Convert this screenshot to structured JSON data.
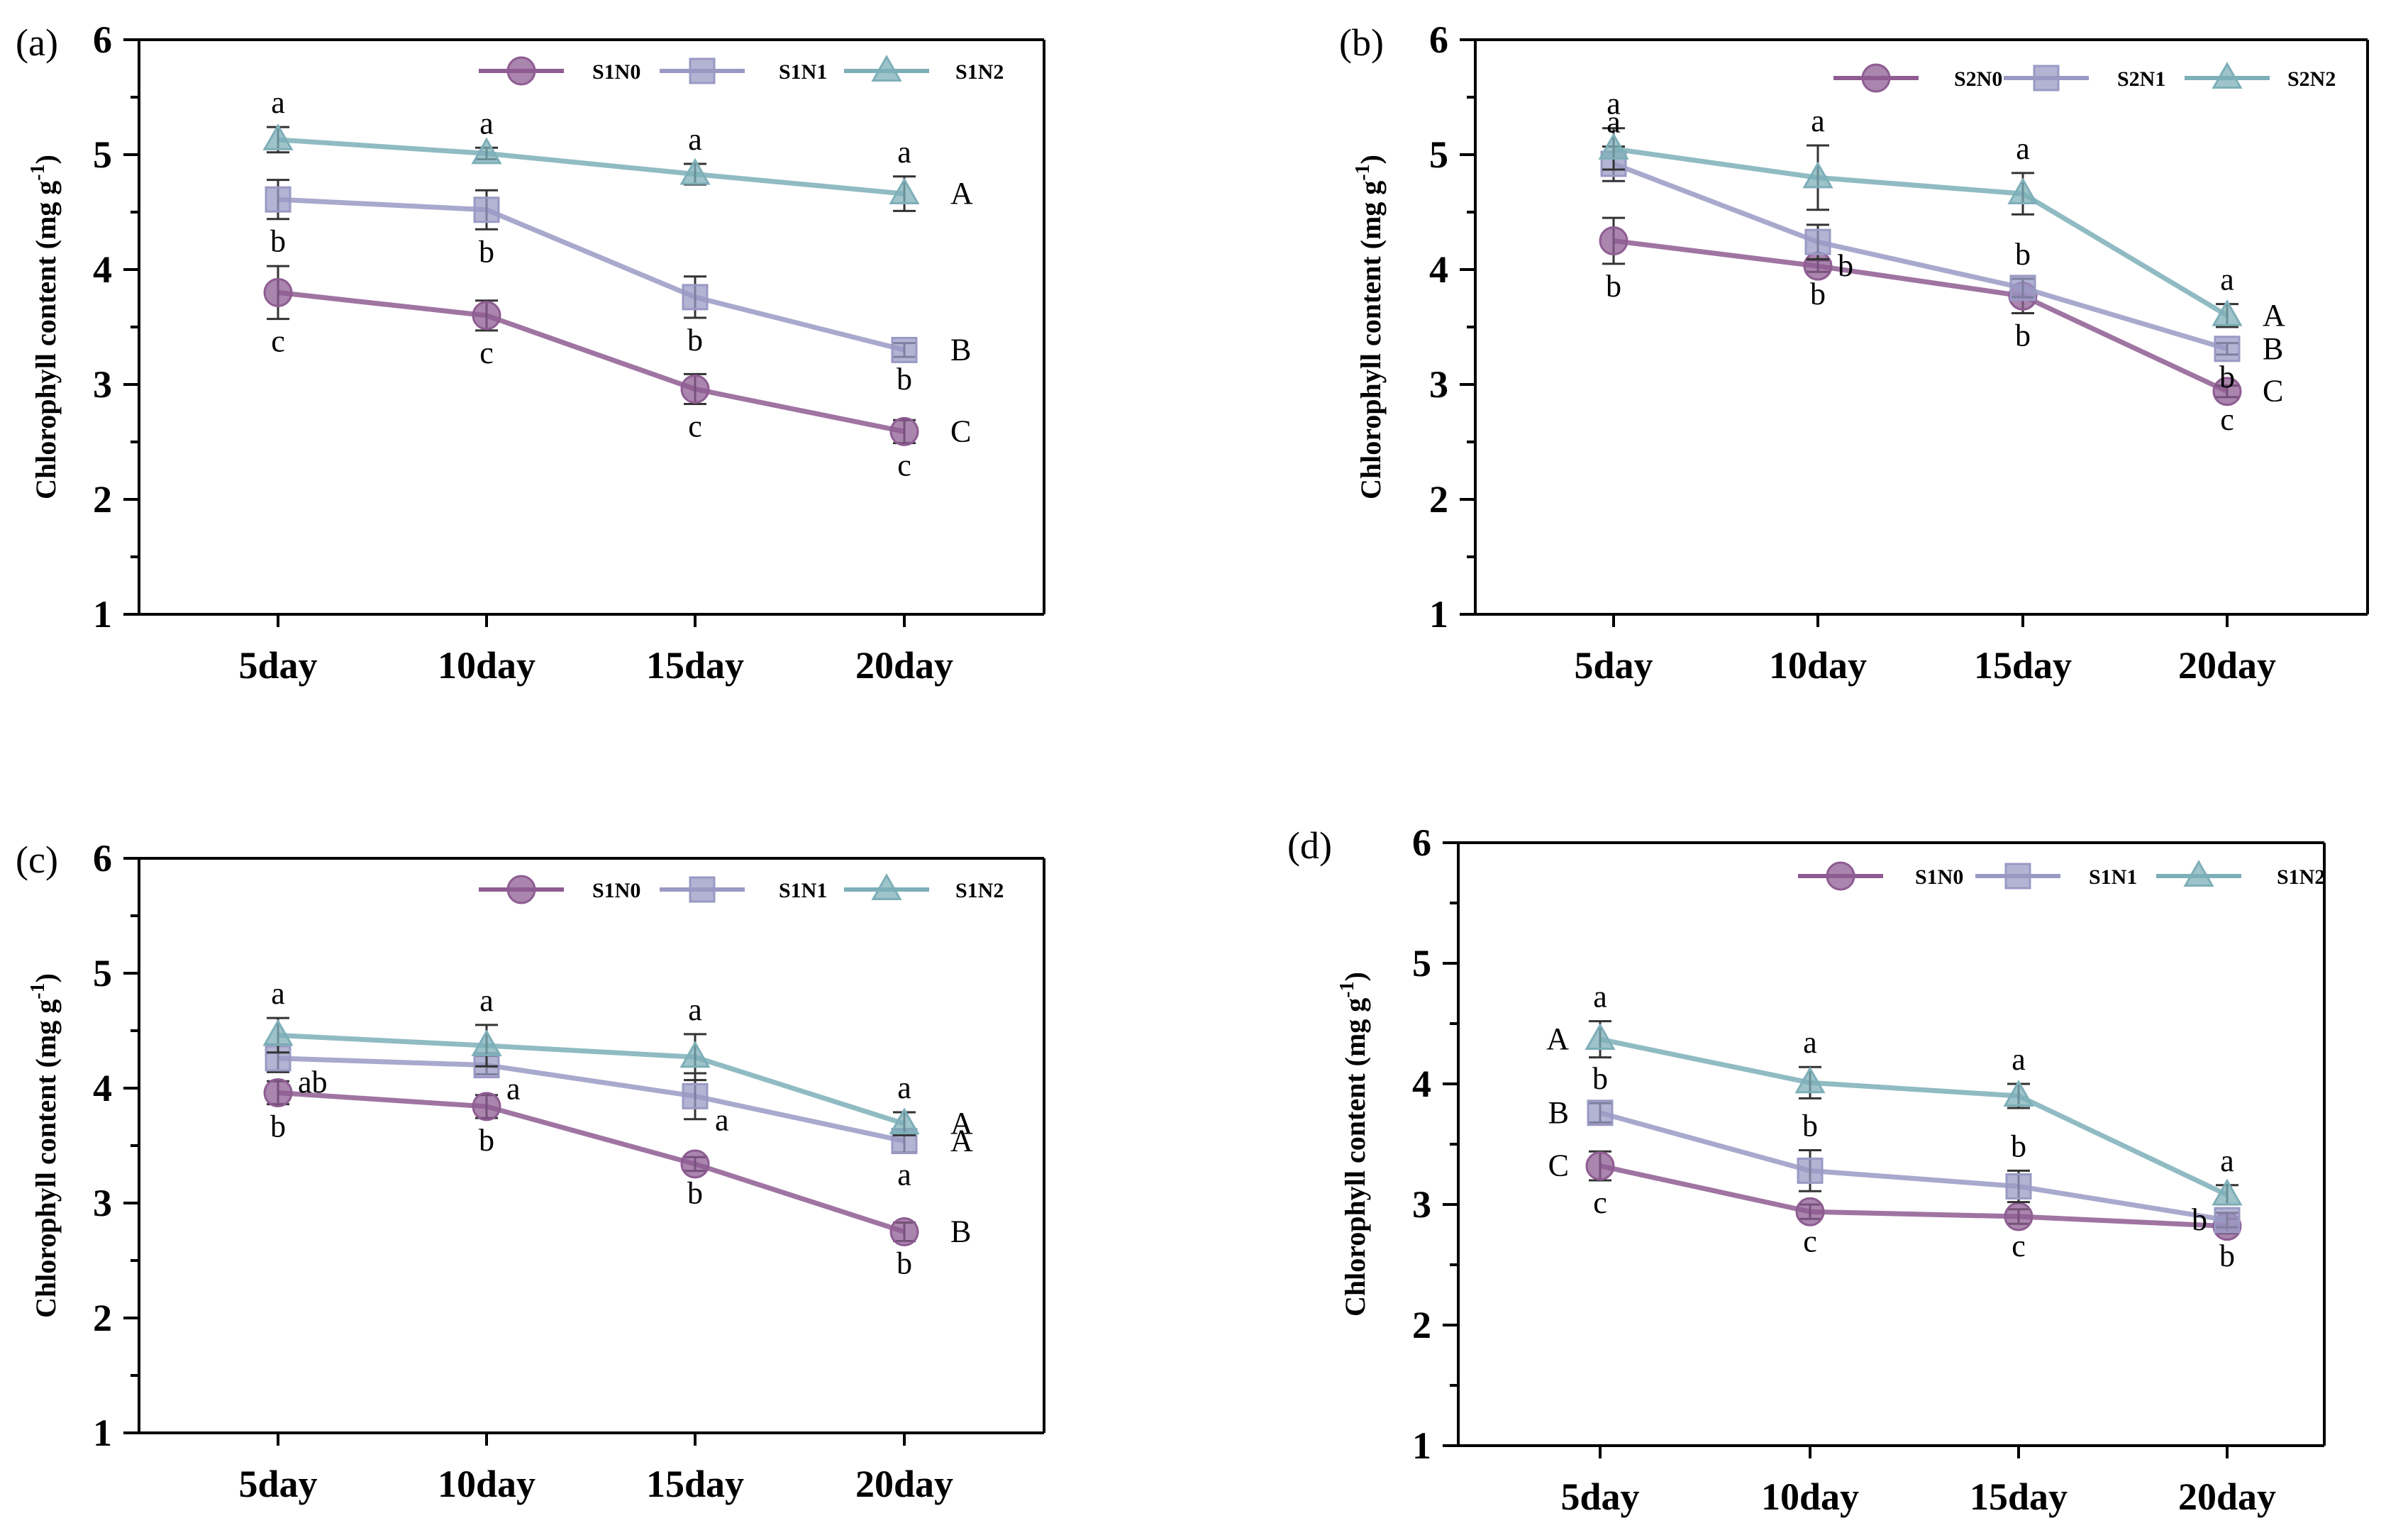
{
  "colors": {
    "N0": "#8E5C92",
    "N1": "#9A99C4",
    "N2": "#7DAFB8"
  },
  "chart_data": [
    {
      "panel": "(a)",
      "type": "line",
      "ylabel": "Chlorophyll content (mg g",
      "ylabel_sup": "-1",
      "ylabel_close": ")",
      "ylim": [
        1,
        6
      ],
      "yticks": [
        "1",
        "2",
        "3",
        "4",
        "5",
        "6"
      ],
      "categories": [
        "5day",
        "10day",
        "15day",
        "20day"
      ],
      "legend_position": "top",
      "series": [
        {
          "name": "S1N0",
          "marker": "circle",
          "values": [
            3.8,
            3.6,
            2.96,
            2.59
          ],
          "errors": [
            0.23,
            0.13,
            0.13,
            0.1
          ],
          "sig": [
            "c",
            "c",
            "c",
            "c"
          ],
          "sig_pos": [
            "below",
            "below",
            "below",
            "below"
          ],
          "group": "C"
        },
        {
          "name": "S1N1",
          "marker": "square",
          "values": [
            4.61,
            4.52,
            3.76,
            3.3
          ],
          "errors": [
            0.17,
            0.17,
            0.18,
            0.06
          ],
          "sig": [
            "b",
            "b",
            "b",
            "b"
          ],
          "sig_pos": [
            "below",
            "below",
            "below",
            "below"
          ],
          "group": "B"
        },
        {
          "name": "S1N2",
          "marker": "triangle",
          "values": [
            5.13,
            5.01,
            4.83,
            4.66
          ],
          "errors": [
            0.11,
            0.05,
            0.09,
            0.15
          ],
          "sig": [
            "a",
            "a",
            "a",
            "a"
          ],
          "sig_pos": [
            "above",
            "above",
            "above",
            "above"
          ],
          "group": "A"
        }
      ]
    },
    {
      "panel": "(b)",
      "type": "line",
      "ylabel": "Chlorophyll content (mg g",
      "ylabel_sup": "-1",
      "ylabel_close": ")",
      "ylim": [
        1,
        6
      ],
      "yticks": [
        "1",
        "2",
        "3",
        "4",
        "5",
        "6"
      ],
      "categories": [
        "5day",
        "10day",
        "15day",
        "20day"
      ],
      "legend_position": "top",
      "series": [
        {
          "name": "S2N0",
          "marker": "circle",
          "values": [
            4.25,
            4.03,
            3.77,
            2.94
          ],
          "errors": [
            0.2,
            0.05,
            0.15,
            0.05
          ],
          "sig": [
            "b",
            "b",
            "b",
            "c"
          ],
          "sig_pos": [
            "below",
            "below",
            "below",
            "below"
          ],
          "group": "C"
        },
        {
          "name": "S2N1",
          "marker": "square",
          "values": [
            4.92,
            4.24,
            3.84,
            3.31
          ],
          "errors": [
            0.15,
            0.15,
            0.08,
            0.05
          ],
          "sig": [
            "a",
            "b",
            "b",
            "b"
          ],
          "sig_pos": [
            "above",
            "right",
            "above",
            "below"
          ],
          "group": "B"
        },
        {
          "name": "S2N2",
          "marker": "triangle",
          "values": [
            5.05,
            4.8,
            4.66,
            3.6
          ],
          "errors": [
            0.18,
            0.28,
            0.18,
            0.1
          ],
          "sig": [
            "a",
            "a",
            "a",
            "a"
          ],
          "sig_pos": [
            "above",
            "above",
            "above",
            "above"
          ],
          "group": "A"
        }
      ]
    },
    {
      "panel": "(c)",
      "type": "line",
      "ylabel": "Chlorophyll content (mg g",
      "ylabel_sup": "-1",
      "ylabel_close": ")",
      "ylim": [
        1,
        6
      ],
      "yticks": [
        "1",
        "2",
        "3",
        "4",
        "5",
        "6"
      ],
      "categories": [
        "5day",
        "10day",
        "15day",
        "20day"
      ],
      "legend_position": "top",
      "series": [
        {
          "name": "S1N0",
          "marker": "circle",
          "values": [
            3.96,
            3.84,
            3.34,
            2.75
          ],
          "errors": [
            0.1,
            0.1,
            0.06,
            0.08
          ],
          "sig": [
            "b",
            "b",
            "b",
            "b"
          ],
          "sig_pos": [
            "below",
            "below",
            "below",
            "below"
          ],
          "group": "B"
        },
        {
          "name": "S1N1",
          "marker": "square",
          "values": [
            4.26,
            4.2,
            3.93,
            3.54
          ],
          "errors": [
            0.12,
            0.08,
            0.2,
            0.1
          ],
          "sig": [
            "ab",
            "a",
            "a",
            "a"
          ],
          "sig_pos": [
            "right",
            "right",
            "right",
            "below"
          ],
          "group": "A"
        },
        {
          "name": "S1N2",
          "marker": "triangle",
          "values": [
            4.46,
            4.37,
            4.27,
            3.69
          ],
          "errors": [
            0.15,
            0.18,
            0.2,
            0.1
          ],
          "sig": [
            "a",
            "a",
            "a",
            "a"
          ],
          "sig_pos": [
            "above",
            "above",
            "above",
            "above"
          ],
          "group": "A"
        }
      ]
    },
    {
      "panel": "(d)",
      "type": "line",
      "ylabel": "Chlorophyll content (mg g",
      "ylabel_sup": "-1",
      "ylabel_close": ")",
      "ylim": [
        1,
        6
      ],
      "yticks": [
        "1",
        "2",
        "3",
        "4",
        "5",
        "6"
      ],
      "categories": [
        "5day",
        "10day",
        "15day",
        "20day"
      ],
      "legend_position": "top",
      "series": [
        {
          "name": "S1N0",
          "marker": "circle",
          "values": [
            3.32,
            2.94,
            2.9,
            2.82
          ],
          "errors": [
            0.12,
            0.06,
            0.06,
            0.06
          ],
          "sig": [
            "c",
            "c",
            "c",
            "b"
          ],
          "sig_pos": [
            "below",
            "below",
            "below",
            "below"
          ],
          "group": "C"
        },
        {
          "name": "S1N1",
          "marker": "square",
          "values": [
            3.76,
            3.28,
            3.15,
            2.87
          ],
          "errors": [
            0.08,
            0.17,
            0.13,
            0.06
          ],
          "sig": [
            "b",
            "b",
            "b",
            "b"
          ],
          "sig_pos": [
            "above",
            "above",
            "above",
            "left"
          ],
          "group": "B"
        },
        {
          "name": "S1N2",
          "marker": "triangle",
          "values": [
            4.37,
            4.01,
            3.9,
            3.08
          ],
          "errors": [
            0.15,
            0.13,
            0.1,
            0.08
          ],
          "sig": [
            "a",
            "a",
            "a",
            "a"
          ],
          "sig_pos": [
            "above",
            "above",
            "above",
            "above"
          ],
          "group": "A"
        }
      ]
    }
  ]
}
